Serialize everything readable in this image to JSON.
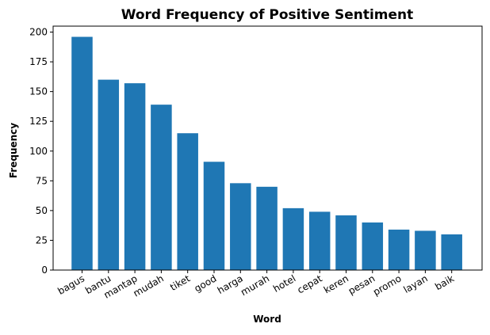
{
  "chart_data": {
    "type": "bar",
    "title": "Word Frequency of Positive Sentiment",
    "xlabel": "Word",
    "ylabel": "Frequency",
    "categories": [
      "bagus",
      "bantu",
      "mantap",
      "mudah",
      "tiket",
      "good",
      "harga",
      "murah",
      "hotel",
      "cepat",
      "keren",
      "pesan",
      "promo",
      "layan",
      "baik"
    ],
    "values": [
      196,
      160,
      157,
      139,
      115,
      91,
      73,
      70,
      52,
      49,
      46,
      40,
      34,
      33,
      30
    ],
    "ylim": [
      0,
      205
    ],
    "yticks": [
      0,
      25,
      50,
      75,
      100,
      125,
      150,
      175,
      200
    ],
    "bar_color": "#1f77b4",
    "grid": false,
    "legend": "none",
    "xtick_rotation": 30
  }
}
